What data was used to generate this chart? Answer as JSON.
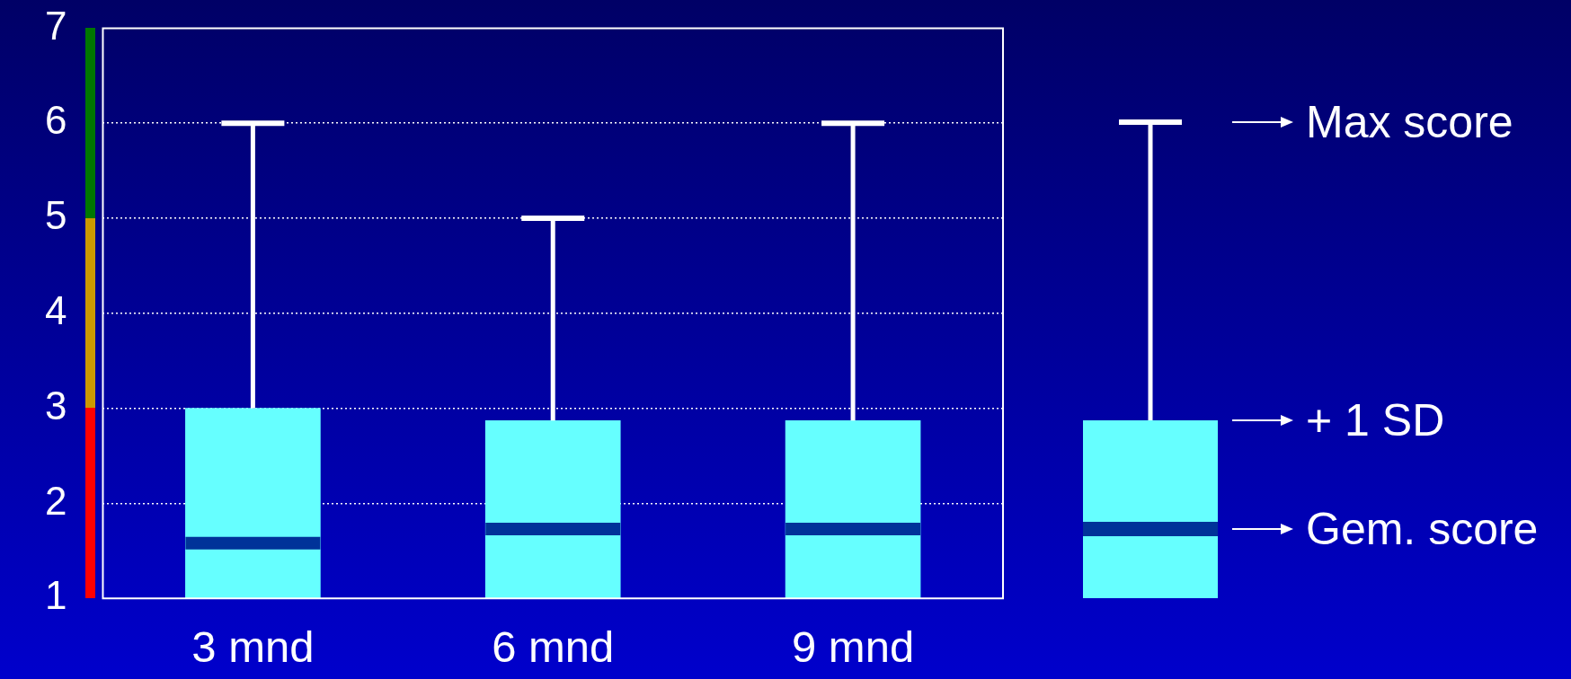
{
  "chart_data": {
    "type": "box",
    "categories": [
      "3 mnd",
      "6 mnd",
      "9 mnd"
    ],
    "series": [
      {
        "color": "#66ffff",
        "boxes": [
          {
            "low": 1,
            "q1": 1,
            "median": 1.58,
            "q3": 3,
            "high": 6
          },
          {
            "low": 1,
            "q1": 1,
            "median": 1.73,
            "q3": 2.87,
            "high": 5
          },
          {
            "low": 1,
            "q1": 1,
            "median": 1.73,
            "q3": 2.87,
            "high": 6
          }
        ]
      }
    ],
    "ylim": [
      1,
      7
    ],
    "yticks": [
      1,
      2,
      3,
      4,
      5,
      6,
      7
    ],
    "grid": "y",
    "legend": false,
    "annotations": [
      "Max score",
      "+ 1 SD",
      "Gem. score"
    ]
  }
}
